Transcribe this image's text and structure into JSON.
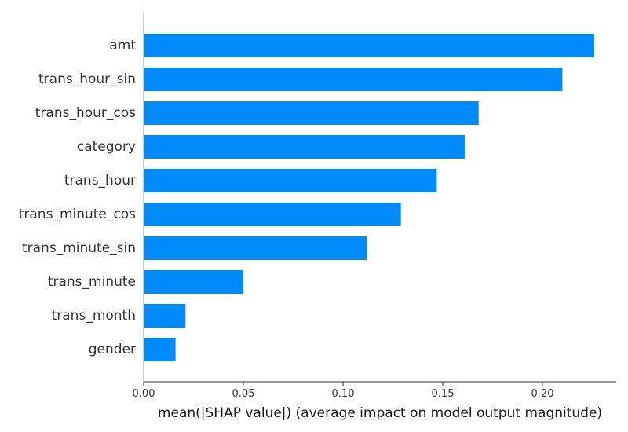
{
  "chart_data": {
    "type": "bar",
    "orientation": "horizontal",
    "categories": [
      "amt",
      "trans_hour_sin",
      "trans_hour_cos",
      "category",
      "trans_hour",
      "trans_minute_cos",
      "trans_minute_sin",
      "trans_minute",
      "trans_month",
      "gender"
    ],
    "values": [
      0.226,
      0.21,
      0.168,
      0.161,
      0.147,
      0.129,
      0.112,
      0.05,
      0.021,
      0.016
    ],
    "title": "",
    "xlabel": "mean(|SHAP value|) (average impact on model output magnitude)",
    "ylabel": "",
    "xlim": [
      0,
      0.237
    ],
    "xticks": [
      0.0,
      0.05,
      0.1,
      0.15,
      0.2
    ],
    "xtick_labels": [
      "0.00",
      "0.05",
      "0.10",
      "0.15",
      "0.20"
    ],
    "bar_color": "#008bfb",
    "grid": false,
    "legend": "none"
  }
}
